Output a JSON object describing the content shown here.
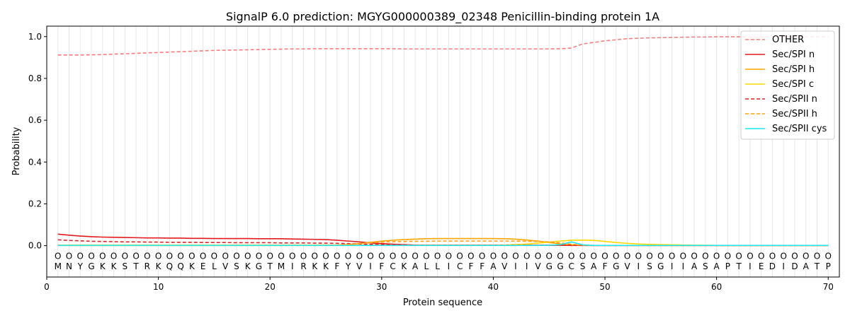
{
  "chart_data": {
    "type": "line",
    "title": "SignalP 6.0 prediction: MGYG000000389_02348 Penicillin-binding protein 1A",
    "xlabel": "Protein sequence",
    "ylabel": "Probability",
    "xlim": [
      0,
      71
    ],
    "ylim": [
      -0.15,
      1.05
    ],
    "xticks": [
      0,
      10,
      20,
      30,
      40,
      50,
      60,
      70
    ],
    "yticks": [
      0.0,
      0.2,
      0.4,
      0.6,
      0.8,
      1.0
    ],
    "xtick_labels": [
      "0",
      "10",
      "20",
      "30",
      "40",
      "50",
      "60",
      "70"
    ],
    "ytick_labels": [
      "0.0",
      "0.2",
      "0.4",
      "0.6",
      "0.8",
      "1.0"
    ],
    "grid": "vertical",
    "legend_position": "top-right",
    "sequence": [
      "M",
      "N",
      "Y",
      "G",
      "K",
      "K",
      "S",
      "T",
      "R",
      "K",
      "Q",
      "Q",
      "K",
      "E",
      "L",
      "V",
      "S",
      "K",
      "G",
      "T",
      "M",
      "I",
      "R",
      "K",
      "K",
      "F",
      "Y",
      "V",
      "I",
      "F",
      "C",
      "K",
      "A",
      "L",
      "L",
      "I",
      "C",
      "F",
      "F",
      "A",
      "V",
      "I",
      "I",
      "V",
      "G",
      "G",
      "C",
      "S",
      "A",
      "F",
      "G",
      "V",
      "I",
      "S",
      "G",
      "I",
      "I",
      "A",
      "S",
      "A",
      "P",
      "T",
      "I",
      "E",
      "D",
      "I",
      "D",
      "A",
      "T",
      "P"
    ],
    "region_labels": [
      "O",
      "O",
      "O",
      "O",
      "O",
      "O",
      "O",
      "O",
      "O",
      "O",
      "O",
      "O",
      "O",
      "O",
      "O",
      "O",
      "O",
      "O",
      "O",
      "O",
      "O",
      "O",
      "O",
      "O",
      "O",
      "O",
      "O",
      "O",
      "O",
      "O",
      "O",
      "O",
      "O",
      "O",
      "O",
      "O",
      "O",
      "O",
      "O",
      "O",
      "O",
      "O",
      "O",
      "O",
      "O",
      "O",
      "O",
      "O",
      "O",
      "O",
      "O",
      "O",
      "O",
      "O",
      "O",
      "O",
      "O",
      "O",
      "O",
      "O",
      "O",
      "O",
      "O",
      "O",
      "O",
      "O",
      "O",
      "O",
      "O",
      "O"
    ],
    "series": [
      {
        "name": "OTHER",
        "color": "#f08080",
        "dash": "dashed",
        "values": [
          0.912,
          0.912,
          0.912,
          0.913,
          0.914,
          0.916,
          0.918,
          0.92,
          0.922,
          0.924,
          0.926,
          0.928,
          0.93,
          0.932,
          0.934,
          0.935,
          0.936,
          0.937,
          0.938,
          0.939,
          0.94,
          0.941,
          0.941,
          0.942,
          0.942,
          0.942,
          0.942,
          0.942,
          0.942,
          0.942,
          0.942,
          0.941,
          0.941,
          0.941,
          0.941,
          0.941,
          0.941,
          0.941,
          0.941,
          0.941,
          0.941,
          0.941,
          0.941,
          0.941,
          0.941,
          0.942,
          0.945,
          0.965,
          0.972,
          0.98,
          0.985,
          0.99,
          0.992,
          0.994,
          0.995,
          0.996,
          0.997,
          0.998,
          0.998,
          0.999,
          0.999,
          0.999,
          0.999,
          0.999,
          0.999,
          0.999,
          0.999,
          0.999,
          0.999,
          0.999
        ]
      },
      {
        "name": "Sec/SPI n",
        "color": "#e41a1c",
        "dash": "solid",
        "values": [
          0.055,
          0.05,
          0.046,
          0.043,
          0.041,
          0.04,
          0.039,
          0.038,
          0.037,
          0.037,
          0.036,
          0.036,
          0.035,
          0.035,
          0.034,
          0.034,
          0.034,
          0.034,
          0.033,
          0.033,
          0.033,
          0.032,
          0.031,
          0.03,
          0.029,
          0.026,
          0.022,
          0.018,
          0.013,
          0.01,
          0.007,
          0.005,
          0.003,
          0.002,
          0.002,
          0.002,
          0.002,
          0.002,
          0.002,
          0.002,
          0.002,
          0.002,
          0.002,
          0.002,
          0.002,
          0.002,
          0.001,
          0.001,
          0.001,
          0.001,
          0.001,
          0.001,
          0.001,
          0.001,
          0.001,
          0.001,
          0.001,
          0.001,
          0.001,
          0.001,
          0.001,
          0.001,
          0.001,
          0.001,
          0.001,
          0.001,
          0.001,
          0.001,
          0.001,
          0.001
        ]
      },
      {
        "name": "Sec/SPI h",
        "color": "#ffa500",
        "dash": "solid",
        "values": [
          0.002,
          0.002,
          0.002,
          0.002,
          0.002,
          0.002,
          0.002,
          0.002,
          0.002,
          0.002,
          0.002,
          0.002,
          0.002,
          0.002,
          0.002,
          0.002,
          0.002,
          0.002,
          0.002,
          0.002,
          0.002,
          0.002,
          0.002,
          0.002,
          0.002,
          0.003,
          0.005,
          0.01,
          0.016,
          0.022,
          0.026,
          0.029,
          0.031,
          0.033,
          0.034,
          0.034,
          0.034,
          0.034,
          0.034,
          0.034,
          0.033,
          0.031,
          0.027,
          0.022,
          0.015,
          0.008,
          0.004,
          0.002,
          0.001,
          0.001,
          0.001,
          0.001,
          0.001,
          0.001,
          0.001,
          0.001,
          0.001,
          0.001,
          0.001,
          0.001,
          0.001,
          0.001,
          0.001,
          0.001,
          0.001,
          0.001,
          0.001,
          0.001,
          0.001,
          0.001
        ]
      },
      {
        "name": "Sec/SPI c",
        "color": "#ffd700",
        "dash": "solid",
        "values": [
          0.002,
          0.002,
          0.002,
          0.002,
          0.002,
          0.002,
          0.002,
          0.002,
          0.002,
          0.002,
          0.002,
          0.002,
          0.002,
          0.002,
          0.002,
          0.002,
          0.002,
          0.002,
          0.002,
          0.002,
          0.002,
          0.002,
          0.002,
          0.002,
          0.002,
          0.002,
          0.002,
          0.002,
          0.002,
          0.002,
          0.002,
          0.002,
          0.002,
          0.002,
          0.002,
          0.002,
          0.002,
          0.002,
          0.002,
          0.002,
          0.003,
          0.005,
          0.008,
          0.012,
          0.017,
          0.022,
          0.026,
          0.027,
          0.025,
          0.02,
          0.015,
          0.011,
          0.008,
          0.006,
          0.005,
          0.004,
          0.003,
          0.002,
          0.002,
          0.001,
          0.001,
          0.001,
          0.001,
          0.001,
          0.001,
          0.001,
          0.001,
          0.001,
          0.001,
          0.001
        ]
      },
      {
        "name": "Sec/SPII n",
        "color": "#d62728",
        "dash": "dashed",
        "values": [
          0.028,
          0.025,
          0.023,
          0.021,
          0.02,
          0.019,
          0.018,
          0.018,
          0.017,
          0.017,
          0.016,
          0.016,
          0.016,
          0.015,
          0.015,
          0.015,
          0.014,
          0.014,
          0.014,
          0.014,
          0.013,
          0.013,
          0.013,
          0.012,
          0.012,
          0.011,
          0.01,
          0.008,
          0.006,
          0.005,
          0.004,
          0.003,
          0.002,
          0.002,
          0.002,
          0.002,
          0.002,
          0.002,
          0.002,
          0.002,
          0.002,
          0.002,
          0.002,
          0.002,
          0.002,
          0.002,
          0.002,
          0.001,
          0.001,
          0.001,
          0.001,
          0.001,
          0.001,
          0.001,
          0.001,
          0.001,
          0.001,
          0.001,
          0.001,
          0.001,
          0.001,
          0.001,
          0.001,
          0.001,
          0.001,
          0.001,
          0.001,
          0.001,
          0.001,
          0.001
        ]
      },
      {
        "name": "Sec/SPII h",
        "color": "#ff9f1c",
        "dash": "dashed",
        "values": [
          0.001,
          0.001,
          0.001,
          0.001,
          0.001,
          0.001,
          0.001,
          0.001,
          0.001,
          0.001,
          0.001,
          0.001,
          0.001,
          0.001,
          0.001,
          0.001,
          0.001,
          0.001,
          0.001,
          0.001,
          0.001,
          0.001,
          0.001,
          0.001,
          0.002,
          0.003,
          0.006,
          0.01,
          0.014,
          0.017,
          0.019,
          0.02,
          0.021,
          0.021,
          0.022,
          0.022,
          0.022,
          0.022,
          0.022,
          0.022,
          0.022,
          0.022,
          0.021,
          0.02,
          0.018,
          0.013,
          0.007,
          0.003,
          0.001,
          0.001,
          0.001,
          0.001,
          0.001,
          0.001,
          0.001,
          0.001,
          0.001,
          0.001,
          0.001,
          0.001,
          0.001,
          0.001,
          0.001,
          0.001,
          0.001,
          0.001,
          0.001,
          0.001,
          0.001,
          0.001
        ]
      },
      {
        "name": "Sec/SPII cys",
        "color": "#1fe6f0",
        "dash": "solid",
        "values": [
          0.001,
          0.001,
          0.001,
          0.001,
          0.001,
          0.001,
          0.001,
          0.001,
          0.001,
          0.001,
          0.001,
          0.001,
          0.001,
          0.001,
          0.001,
          0.001,
          0.001,
          0.001,
          0.001,
          0.001,
          0.001,
          0.001,
          0.001,
          0.001,
          0.001,
          0.001,
          0.001,
          0.001,
          0.001,
          0.001,
          0.001,
          0.001,
          0.001,
          0.001,
          0.001,
          0.001,
          0.001,
          0.001,
          0.001,
          0.001,
          0.001,
          0.001,
          0.001,
          0.001,
          0.002,
          0.005,
          0.018,
          0.004,
          0.001,
          0.001,
          0.001,
          0.001,
          0.001,
          0.001,
          0.001,
          0.001,
          0.001,
          0.001,
          0.001,
          0.001,
          0.001,
          0.001,
          0.001,
          0.001,
          0.001,
          0.001,
          0.001,
          0.001,
          0.001,
          0.001
        ]
      }
    ]
  }
}
